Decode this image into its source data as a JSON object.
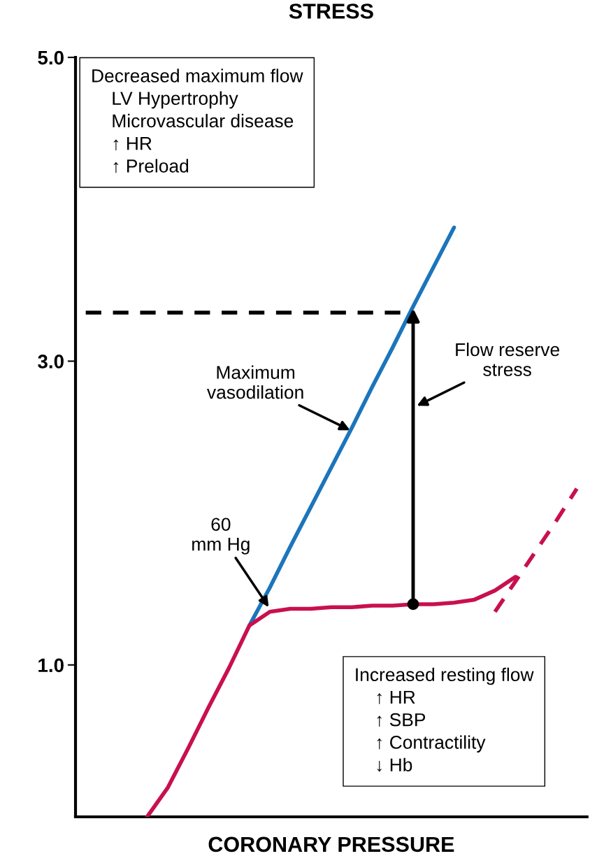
{
  "chart_data": {
    "type": "line",
    "title": "STRESS",
    "xlabel": "CORONARY PRESSURE",
    "categories": [
      null,
      null,
      null,
      null,
      null,
      null,
      null,
      null,
      null,
      null,
      null,
      null,
      null,
      null,
      null,
      null,
      null,
      null,
      null,
      null,
      null,
      null,
      null,
      null,
      null
    ],
    "ylim": [
      0,
      5.0
    ],
    "yticks": [
      {
        "value": 1,
        "label": "1.0"
      },
      {
        "value": 3,
        "label": "3.0"
      },
      {
        "value": 5,
        "label": "5.0"
      }
    ],
    "tick_labels": "y",
    "grid": false,
    "series": [
      {
        "color": "#000000",
        "line_style": "dashed",
        "values": [
          3.32,
          3.32,
          3.32,
          3.32,
          3.32,
          3.32,
          3.32,
          3.32,
          3.32,
          3.32,
          3.32,
          3.32,
          3.32,
          3.32,
          3.32,
          3.32,
          3.32,
          null,
          null,
          null,
          null,
          null,
          null,
          null,
          null
        ]
      },
      {
        "color": "#1b75bc",
        "line_style": "solid",
        "values": [
          null,
          null,
          null,
          null,
          null,
          null,
          null,
          null,
          1.26,
          1.51,
          1.78,
          2.04,
          2.3,
          2.56,
          2.83,
          3.09,
          3.36,
          3.62,
          3.88,
          null,
          null,
          null,
          null,
          null,
          null
        ]
      },
      {
        "color": "#c8104f",
        "line_style": "dashed",
        "values": [
          null,
          null,
          null,
          null,
          null,
          null,
          null,
          null,
          null,
          null,
          null,
          null,
          null,
          null,
          null,
          null,
          null,
          null,
          null,
          null,
          1.35,
          1.55,
          1.75,
          1.95,
          2.16
        ]
      },
      {
        "color": "#c8104f",
        "line_style": "solid",
        "values": [
          null,
          null,
          null,
          0,
          0.19,
          0.45,
          0.72,
          0.98,
          1.26,
          1.35,
          1.37,
          1.37,
          1.38,
          1.38,
          1.39,
          1.39,
          1.4,
          1.4,
          1.41,
          1.43,
          1.49,
          1.58,
          null,
          null,
          null
        ]
      },
      {
        "type": "scatter",
        "color": "#000000",
        "marker": "circle",
        "values": [
          null,
          null,
          null,
          null,
          null,
          null,
          null,
          null,
          null,
          null,
          null,
          null,
          null,
          null,
          null,
          null,
          1.4,
          null,
          null,
          null,
          null,
          null,
          null,
          null,
          null
        ]
      }
    ],
    "annotations": [
      "Decreased maximum flow\n    LV Hypertrophy\n    Microvascular disease\n    ↑ HR\n    ↑ Preload",
      "Maximum\nvasodilation",
      "Flow reserve\nstress",
      "60\nmm Hg",
      "Increased resting flow\n    ↑ HR\n    ↑ SBP\n    ↑ Contractility\n    ↓ Hb"
    ]
  }
}
